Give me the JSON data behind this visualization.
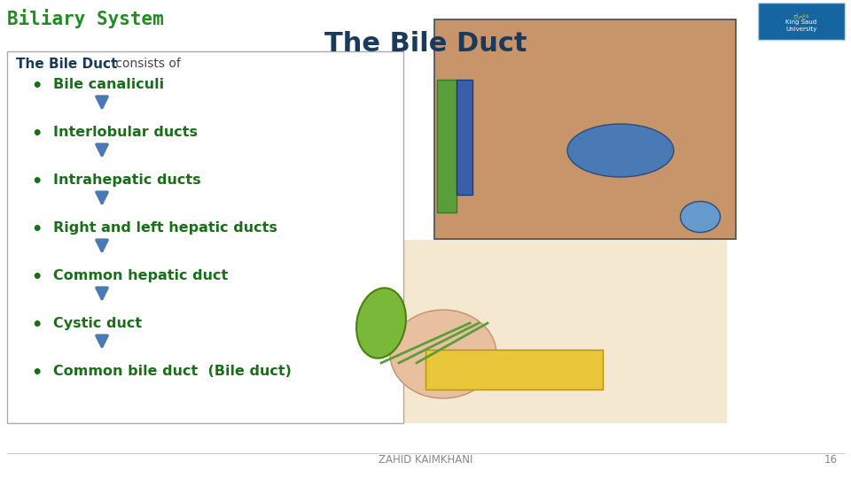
{
  "title": "The Bile Duct",
  "slide_title": "Biliary System",
  "subtitle_bold": "The Bile Duct",
  "subtitle_normal": " consists of",
  "items": [
    "Bile canaliculi",
    "Interlobular ducts",
    "Intrahepatic ducts",
    "Right and left hepatic ducts",
    "Common hepatic duct",
    "Cystic duct",
    "Common bile duct  (Bile duct)"
  ],
  "bg_color": "#ffffff",
  "slide_title_color": "#228B22",
  "title_color": "#1a3a5c",
  "item_color": "#1a6e1a",
  "box_bg": "#ffffff",
  "box_border": "#aaaaaa",
  "arrow_color": "#4a7ab5",
  "footer_text": "ZAHID KAIMKHANI",
  "page_number": "16",
  "footer_color": "#888888",
  "subtitle_bold_color": "#1a3a5c",
  "subtitle_normal_color": "#444444"
}
